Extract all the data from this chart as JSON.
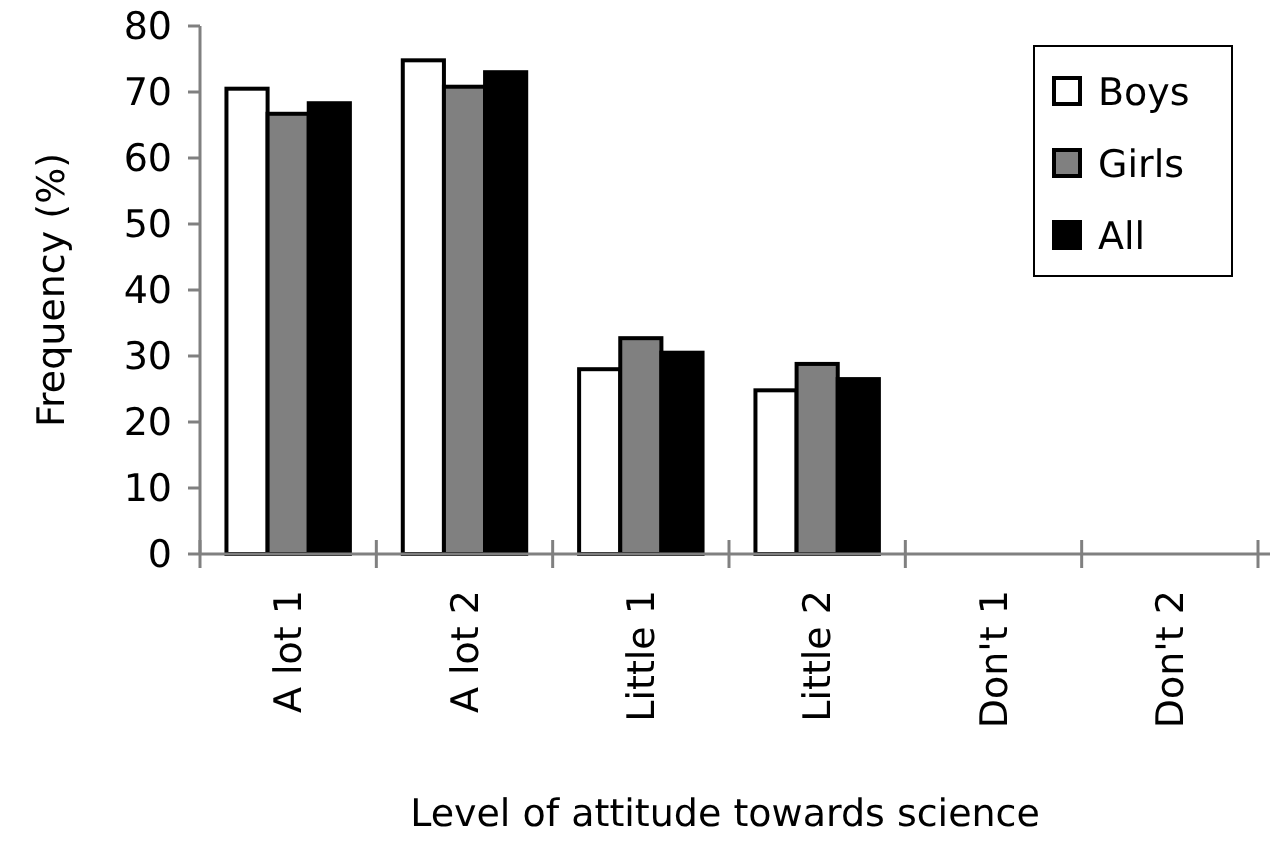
{
  "chart_data": {
    "type": "bar",
    "xlabel": "Level of attitude towards science",
    "ylabel": "Frequency (%)",
    "categories": [
      "A lot 1",
      "A lot 2",
      "Little 1",
      "Little 2",
      "Don't 1",
      "Don't 2"
    ],
    "series": [
      {
        "name": "Boys",
        "color": "#ffffff",
        "values": [
          70.5,
          74.8,
          28,
          24.8,
          0,
          0
        ]
      },
      {
        "name": "Girls",
        "color": "#808080",
        "values": [
          66.7,
          70.8,
          32.7,
          28.8,
          0,
          0
        ]
      },
      {
        "name": "All",
        "color": "#000000",
        "values": [
          68.3,
          73,
          30.5,
          26.5,
          0,
          0
        ]
      }
    ],
    "ylim": [
      0,
      80
    ],
    "yticks": [
      0,
      10,
      20,
      30,
      40,
      50,
      60,
      70,
      80
    ],
    "grid": false,
    "legend": "top right"
  }
}
